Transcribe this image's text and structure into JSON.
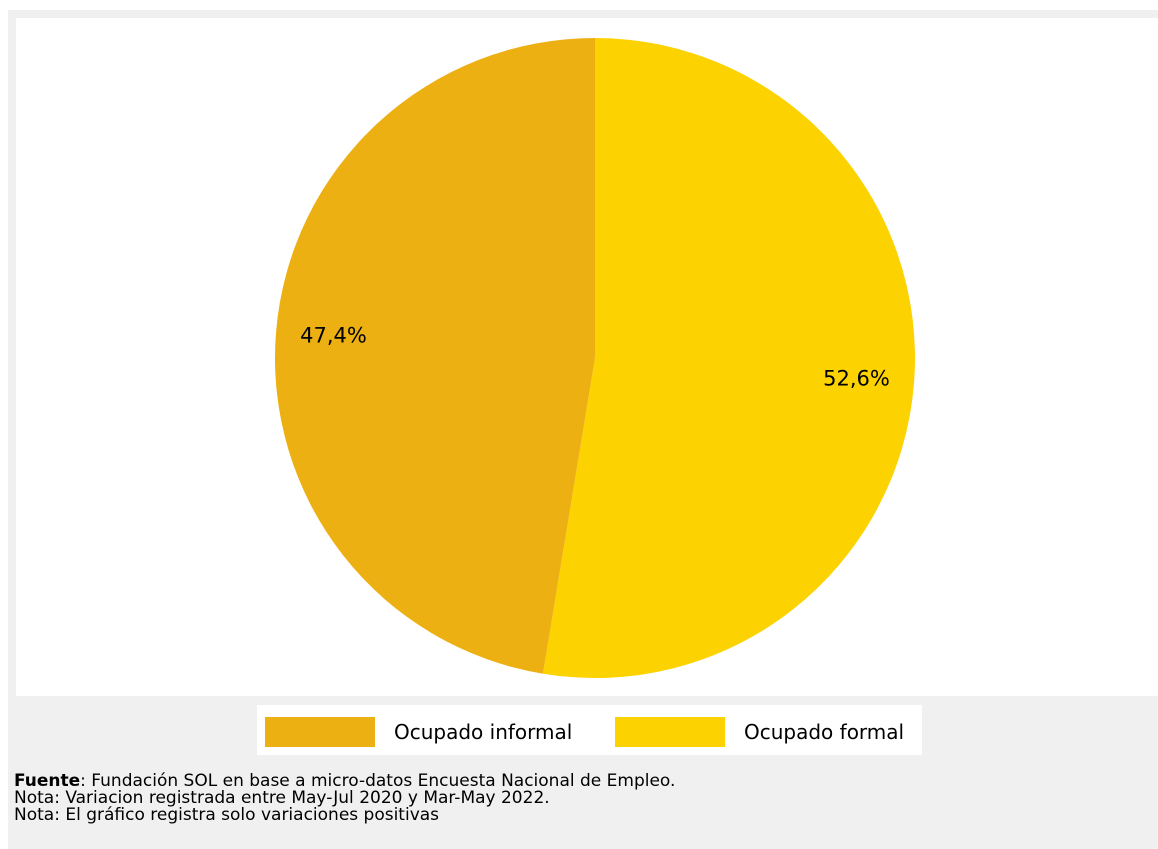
{
  "chart_data": {
    "type": "pie",
    "slices": [
      {
        "label": "Ocupado formal",
        "value": 52.6,
        "value_label": "52,6%",
        "color": "#FCD200"
      },
      {
        "label": "Ocupado informal",
        "value": 47.4,
        "value_label": "47,4%",
        "color": "#EDB013"
      }
    ],
    "start_angle_deg": 0,
    "direction": "clockwise",
    "legend_position": "bottom",
    "legend": [
      {
        "label": "Ocupado informal",
        "color": "#EDB013"
      },
      {
        "label": "Ocupado formal",
        "color": "#FCD200"
      }
    ]
  },
  "footnotes": {
    "source_label": "Fuente",
    "source_text": ": Fundación SOL en base a micro-datos Encuesta Nacional de Empleo.",
    "note1": "Nota: Variacion registrada entre May-Jul 2020 y Mar-May 2022.",
    "note2": "Nota: El gráfico registra solo variaciones positivas"
  }
}
